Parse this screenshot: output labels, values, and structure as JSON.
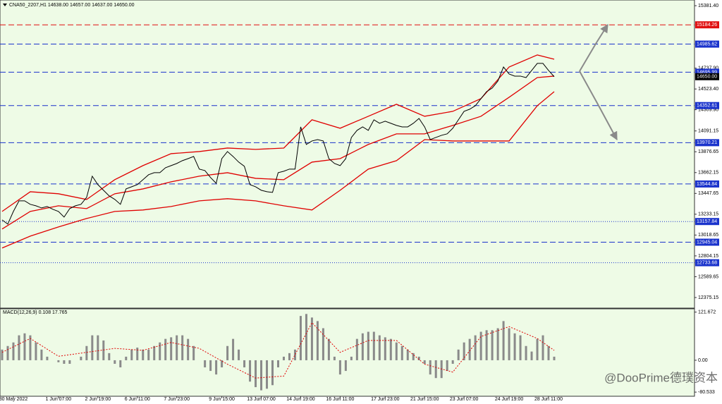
{
  "chart_data": {
    "type": "line",
    "title": "CNA50_2207,H1  14638.00 14657.00 14637.00 14650.00",
    "categories": [
      null,
      null,
      "30 May 2022",
      null,
      null,
      null,
      null,
      null,
      null,
      null,
      "1 Jun 07:00",
      null,
      null,
      null,
      null,
      null,
      null,
      "2 Jun 19:00",
      null,
      null,
      null,
      null,
      null,
      null,
      "6 Jun 11:00",
      null,
      null,
      null,
      null,
      null,
      null,
      "7 Jun 23:00",
      null,
      null,
      null,
      null,
      null,
      null,
      null,
      "9 Jun 15:00",
      null,
      null,
      null,
      null,
      null,
      null,
      "13 Jun 07:00",
      null,
      null,
      null,
      null,
      null,
      null,
      "14 Jun 19:00",
      null,
      null,
      null,
      null,
      null,
      null,
      "16 Jun 11:00",
      null,
      null,
      null,
      null,
      null,
      null,
      null,
      "17 Jun 23:00",
      null,
      null,
      null,
      null,
      null,
      null,
      "21 Jun 15:00",
      null,
      null,
      null,
      null,
      null,
      null,
      "23 Jun 07:00",
      null,
      null,
      null,
      null,
      null,
      null,
      null,
      "24 Jun 19:00",
      null,
      null,
      null,
      null,
      null,
      null,
      "28 Jun 11:00",
      null
    ],
    "series": [
      {
        "color": "#000000",
        "values": [
          13175,
          13131,
          13262,
          13371,
          13371,
          13335,
          13320,
          13298,
          13313,
          13284,
          13262,
          13204,
          13291,
          13320,
          13335,
          13407,
          13625,
          13538,
          13480,
          13422,
          13386,
          13335,
          13494,
          13516,
          13538,
          13589,
          13640,
          13661,
          13661,
          13712,
          13734,
          13756,
          13785,
          13806,
          13828,
          13698,
          13683,
          13611,
          13552,
          13806,
          13879,
          13828,
          13770,
          13727,
          13538,
          13516,
          13480,
          13465,
          13458,
          13661,
          13676,
          13698,
          13698,
          14133,
          13952,
          13988,
          14002,
          13988,
          13806,
          13756,
          13734,
          13806,
          14024,
          14097,
          14133,
          14097,
          14206,
          14170,
          14191,
          14170,
          14148,
          14133,
          14133,
          14170,
          14220,
          14133,
          14002,
          14024,
          14046,
          14061,
          14119,
          14206,
          14293,
          14315,
          14351,
          14424,
          14496,
          14533,
          14605,
          14750,
          14678,
          14656,
          14656,
          14641,
          14714,
          14787,
          14787,
          14714,
          14650
        ]
      }
    ],
    "bands": {
      "color": "#e00000",
      "index": [
        0,
        5,
        10,
        15,
        20,
        25,
        30,
        35,
        40,
        45,
        50,
        55,
        60,
        65,
        70,
        75,
        80,
        85,
        90,
        95,
        98
      ],
      "upper": [
        13262,
        13465,
        13444,
        13385,
        13589,
        13734,
        13857,
        13879,
        13915,
        13901,
        13915,
        14206,
        14119,
        14242,
        14366,
        14242,
        14293,
        14424,
        14750,
        14874,
        14830
      ],
      "middle": [
        13081,
        13262,
        13320,
        13291,
        13444,
        13494,
        13567,
        13625,
        13661,
        13603,
        13589,
        13770,
        13806,
        13952,
        14061,
        14061,
        14148,
        14242,
        14438,
        14641,
        14656
      ],
      "lower": [
        12885,
        13008,
        13102,
        13189,
        13262,
        13277,
        13313,
        13371,
        13393,
        13371,
        13320,
        13277,
        13480,
        13698,
        13785,
        14002,
        13988,
        13988,
        13988,
        14351,
        14496
      ]
    },
    "ylim": [
      12266,
      15440
    ],
    "yticks": [
      {
        "value": 15381.4,
        "label": "15381.40"
      },
      {
        "value": 14737.9,
        "label": "14737.90"
      },
      {
        "value": 14523.4,
        "label": "14523.40"
      },
      {
        "value": 14309.9,
        "label": "14309.90"
      },
      14091.15,
      13876.65,
      13662.15,
      13447.65,
      13233.15,
      13018.65,
      12804.15,
      12589.65,
      12375.15
    ],
    "levels": [
      {
        "value": 15184.26,
        "color": "#e01010",
        "style": "dashed"
      },
      {
        "value": 14985.62,
        "color": "#1a33cc",
        "style": "dashed"
      },
      {
        "value": 14695.99,
        "color": "#1a33cc",
        "style": "dashed"
      },
      {
        "value": 14650,
        "label": "14650.00",
        "color": "#000000",
        "style": "none"
      },
      {
        "value": 14352.61,
        "color": "#1a33cc",
        "style": "dashed"
      },
      {
        "value": 13970.21,
        "color": "#1a33cc",
        "style": "dashed"
      },
      {
        "value": 13544.84,
        "color": "#1a33cc",
        "style": "dashed"
      },
      {
        "value": 13157.84,
        "color": "#1a33cc",
        "style": "dotted"
      },
      {
        "value": 12945.04,
        "color": "#1a33cc",
        "style": "dashed"
      },
      {
        "value": 12733.68,
        "color": "#1a33cc",
        "style": "dotted"
      }
    ],
    "macd": {
      "title": "MACD(12,26,9) 0.108 17.765",
      "color": "#8a8a8a",
      "signal_color": "#e00000",
      "values": [
        27,
        36,
        45,
        63,
        68,
        63,
        45,
        27,
        9,
        0,
        -5,
        -9,
        -9,
        0,
        9,
        36,
        63,
        63,
        50,
        18,
        -9,
        -18,
        9,
        27,
        32,
        27,
        27,
        36,
        45,
        54,
        58,
        63,
        63,
        54,
        36,
        0,
        -18,
        -27,
        -36,
        -18,
        36,
        54,
        27,
        -18,
        -54,
        -68,
        -76,
        -72,
        -63,
        -18,
        9,
        18,
        27,
        112,
        117,
        108,
        99,
        81,
        54,
        9,
        -36,
        -27,
        9,
        54,
        68,
        72,
        72,
        63,
        58,
        54,
        45,
        36,
        27,
        18,
        9,
        -9,
        -36,
        -45,
        -45,
        -27,
        -9,
        27,
        45,
        54,
        63,
        72,
        76,
        76,
        81,
        99,
        81,
        68,
        63,
        36,
        22,
        54,
        63,
        36,
        9
      ],
      "signal": [
        20,
        55,
        10,
        20,
        30,
        25,
        45,
        30,
        -10,
        -45,
        -40,
        95,
        20,
        50,
        50,
        -10,
        -30,
        60,
        85,
        55,
        25
      ],
      "ylim": [
        -91,
        130
      ],
      "yticks": [
        121.672,
        {
          "value": 0,
          "label": "0.00"
        },
        -80.533
      ]
    },
    "watermark": "@DooPrime德璞资本"
  }
}
